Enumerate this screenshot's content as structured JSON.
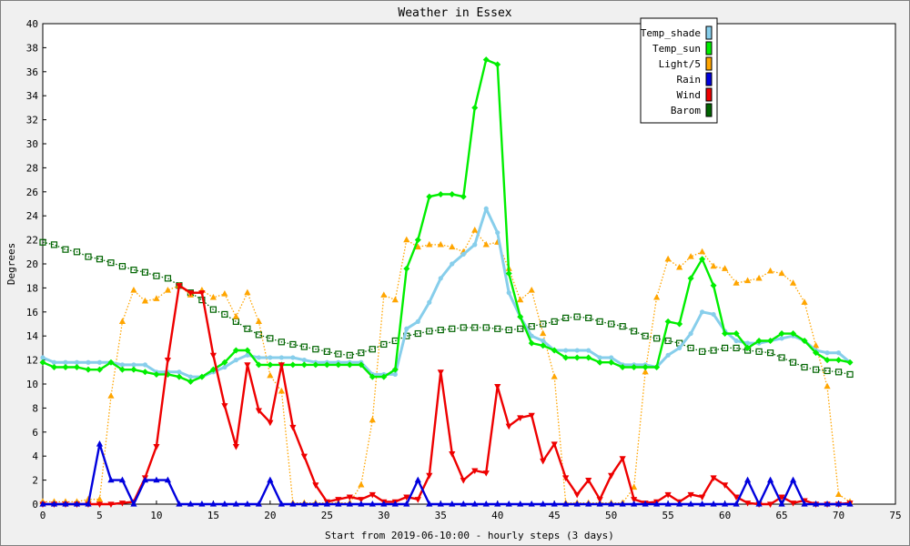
{
  "chart_data": {
    "type": "line",
    "title": "Weather in Essex",
    "xlabel": "Start from 2019-06-10:00 - hourly steps (3 days)",
    "ylabel": "Degrees",
    "xlim": [
      0,
      75
    ],
    "ylim": [
      0,
      40
    ],
    "x_ticks": [
      0,
      5,
      10,
      15,
      20,
      25,
      30,
      35,
      40,
      45,
      50,
      55,
      60,
      65,
      70,
      75
    ],
    "y_ticks": [
      0,
      2,
      4,
      6,
      8,
      10,
      12,
      14,
      16,
      18,
      20,
      22,
      24,
      26,
      28,
      30,
      32,
      34,
      36,
      38,
      40
    ],
    "grid": false,
    "legend_position": "top-right",
    "series": [
      {
        "name": "Temp_shade",
        "color": "#87ceeb",
        "marker": "circle",
        "style": "solid",
        "values": [
          12.2,
          11.8,
          11.8,
          11.8,
          11.8,
          11.8,
          11.8,
          11.6,
          11.6,
          11.6,
          11.0,
          11.0,
          11.0,
          10.6,
          10.6,
          11.0,
          11.4,
          12.0,
          12.4,
          12.2,
          12.2,
          12.2,
          12.2,
          12.0,
          11.8,
          11.8,
          11.8,
          11.8,
          11.8,
          10.8,
          10.8,
          10.8,
          14.6,
          15.2,
          16.8,
          18.8,
          20.0,
          20.8,
          21.6,
          24.6,
          22.6,
          17.6,
          15.6,
          14.0,
          13.6,
          12.8,
          12.8,
          12.8,
          12.8,
          12.2,
          12.2,
          11.6,
          11.6,
          11.6,
          11.4,
          12.4,
          13.0,
          14.2,
          16.0,
          15.8,
          14.4,
          13.6,
          13.4,
          13.4,
          13.6,
          13.8,
          14.0,
          13.6,
          12.8,
          12.6,
          12.6,
          11.8
        ]
      },
      {
        "name": "Temp_sun",
        "color": "#00ee00",
        "marker": "diamond",
        "style": "solid",
        "values": [
          11.8,
          11.4,
          11.4,
          11.4,
          11.2,
          11.2,
          11.8,
          11.2,
          11.2,
          11.0,
          10.8,
          10.8,
          10.6,
          10.2,
          10.6,
          11.2,
          11.8,
          12.8,
          12.8,
          11.6,
          11.6,
          11.6,
          11.6,
          11.6,
          11.6,
          11.6,
          11.6,
          11.6,
          11.6,
          10.6,
          10.6,
          11.2,
          19.6,
          22.0,
          25.6,
          25.8,
          25.8,
          25.6,
          33.0,
          37.0,
          36.6,
          19.2,
          15.6,
          13.4,
          13.2,
          12.8,
          12.2,
          12.2,
          12.2,
          11.8,
          11.8,
          11.4,
          11.4,
          11.4,
          11.4,
          15.2,
          15.0,
          18.8,
          20.4,
          18.2,
          14.2,
          14.2,
          13.0,
          13.6,
          13.6,
          14.2,
          14.2,
          13.6,
          12.6,
          12.0,
          12.0,
          11.8
        ]
      },
      {
        "name": "Light/5",
        "color": "#ffa500",
        "marker": "triangle-up",
        "style": "dotted",
        "values": [
          0.2,
          0.2,
          0.2,
          0.2,
          0.4,
          0.4,
          9.0,
          15.2,
          17.8,
          16.9,
          17.1,
          17.8,
          18.2,
          17.4,
          17.8,
          17.2,
          17.5,
          15.6,
          17.6,
          15.2,
          10.7,
          9.4,
          0.1,
          0.1,
          0.1,
          0.1,
          0.1,
          0.1,
          1.6,
          7.0,
          17.4,
          17.0,
          22.0,
          21.4,
          21.6,
          21.6,
          21.4,
          21.0,
          22.8,
          21.6,
          21.8,
          19.6,
          17.0,
          17.8,
          14.2,
          10.6,
          0.1,
          0.1,
          0.1,
          0.1,
          0.1,
          0.1,
          1.4,
          11.0,
          17.2,
          20.4,
          19.7,
          20.6,
          21.0,
          19.8,
          19.6,
          18.4,
          18.6,
          18.8,
          19.4,
          19.2,
          18.4,
          16.8,
          13.2,
          9.8,
          0.8,
          0.2
        ]
      },
      {
        "name": "Rain",
        "color": "#0000dd",
        "marker": "triangle-up",
        "style": "solid",
        "values": [
          0,
          0,
          0,
          0,
          0,
          5,
          2,
          2,
          0,
          2,
          2,
          2,
          0,
          0,
          0,
          0,
          0,
          0,
          0,
          0,
          2,
          0,
          0,
          0,
          0,
          0,
          0,
          0,
          0,
          0,
          0,
          0,
          0,
          2,
          0,
          0,
          0,
          0,
          0,
          0,
          0,
          0,
          0,
          0,
          0,
          0,
          0,
          0,
          0,
          0,
          0,
          0,
          0,
          0,
          0,
          0,
          0,
          0,
          0,
          0,
          0,
          0,
          2,
          0,
          2,
          0,
          2,
          0,
          0,
          0,
          0,
          0
        ]
      },
      {
        "name": "Wind",
        "color": "#ee0000",
        "marker": "triangle-down",
        "style": "solid",
        "values": [
          0,
          0,
          0,
          0,
          0,
          0,
          0,
          0.1,
          0.2,
          2.2,
          4.8,
          12.0,
          18.2,
          17.6,
          17.6,
          12.4,
          8.2,
          4.8,
          11.6,
          7.8,
          6.8,
          11.6,
          6.4,
          4.0,
          1.6,
          0.2,
          0.4,
          0.6,
          0.4,
          0.8,
          0.2,
          0.2,
          0.6,
          0.4,
          2.4,
          11.0,
          4.2,
          2.0,
          2.8,
          2.6,
          9.8,
          6.5,
          7.2,
          7.4,
          3.6,
          5.0,
          2.2,
          0.8,
          2.0,
          0.4,
          2.4,
          3.8,
          0.4,
          0.1,
          0.2,
          0.8,
          0.2,
          0.8,
          0.6,
          2.2,
          1.6,
          0.6,
          0.1,
          0,
          0,
          0.6,
          0.1,
          0.3,
          0,
          0,
          0,
          0.1
        ]
      },
      {
        "name": "Barom",
        "color": "#006400",
        "marker": "square-open",
        "style": "dotted",
        "values": [
          21.8,
          21.6,
          21.2,
          21.0,
          20.6,
          20.4,
          20.1,
          19.8,
          19.5,
          19.3,
          19.0,
          18.8,
          18.2,
          17.6,
          17.0,
          16.2,
          15.8,
          15.2,
          14.6,
          14.1,
          13.8,
          13.5,
          13.3,
          13.1,
          12.9,
          12.7,
          12.5,
          12.4,
          12.6,
          12.9,
          13.3,
          13.6,
          14.0,
          14.2,
          14.4,
          14.5,
          14.6,
          14.7,
          14.7,
          14.7,
          14.6,
          14.5,
          14.6,
          14.8,
          15.0,
          15.2,
          15.5,
          15.6,
          15.5,
          15.2,
          15.0,
          14.8,
          14.4,
          14.0,
          13.8,
          13.6,
          13.4,
          13.0,
          12.7,
          12.8,
          13.0,
          13.0,
          12.8,
          12.7,
          12.6,
          12.2,
          11.8,
          11.4,
          11.2,
          11.1,
          11.0,
          10.8
        ]
      }
    ]
  }
}
